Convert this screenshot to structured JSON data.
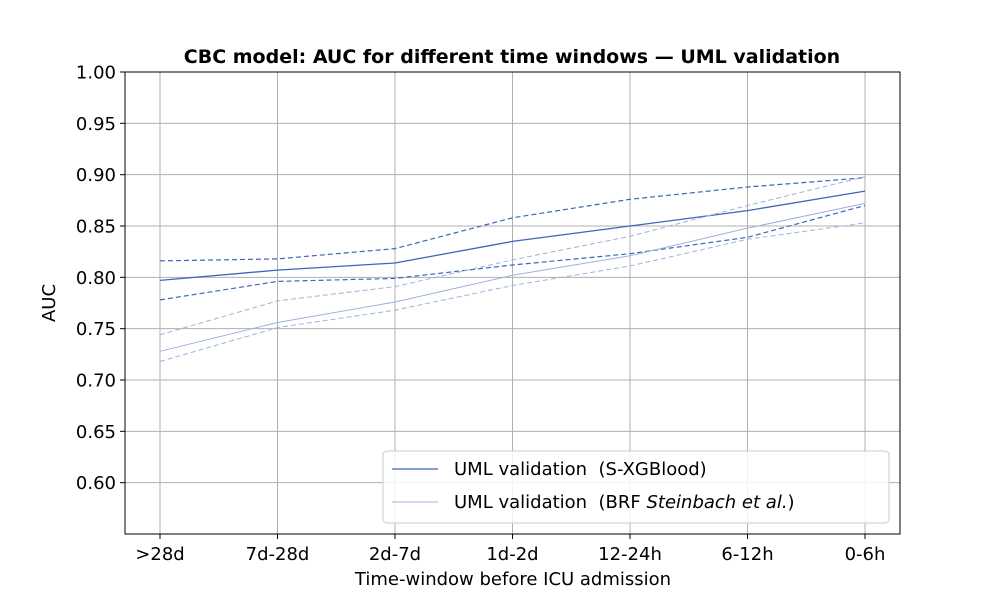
{
  "chart_data": {
    "type": "line",
    "title": "CBC model: AUC for different time windows — UML validation",
    "xlabel": "Time-window before ICU admission",
    "ylabel": "AUC",
    "categories": [
      ">28d",
      "7d-28d",
      "2d-7d",
      "1d-2d",
      "12-24h",
      "6-12h",
      "0-6h"
    ],
    "ylim": [
      0.55,
      1.0
    ],
    "yticks": [
      "0.60",
      "0.65",
      "0.70",
      "0.75",
      "0.80",
      "0.85",
      "0.90",
      "0.95",
      "1.00"
    ],
    "grid": true,
    "legend_position": "lower-right",
    "series": [
      {
        "name": "UML validation  (S-XGBlood)",
        "color": "#3f66b8",
        "values": [
          0.797,
          0.807,
          0.814,
          0.835,
          0.85,
          0.865,
          0.884
        ],
        "upper": [
          0.816,
          0.818,
          0.828,
          0.858,
          0.876,
          0.888,
          0.897
        ],
        "lower": [
          0.778,
          0.796,
          0.799,
          0.812,
          0.823,
          0.839,
          0.87
        ]
      },
      {
        "name": "UML validation  (BRF Steinbach et al.)",
        "name_prefix": "UML validation  (BRF ",
        "name_italic": "Steinbach et al.",
        "name_suffix": ")",
        "color": "#9db2dc",
        "values": [
          0.728,
          0.756,
          0.776,
          0.802,
          0.821,
          0.848,
          0.872
        ],
        "upper": [
          0.744,
          0.777,
          0.791,
          0.817,
          0.84,
          0.87,
          0.898
        ],
        "lower": [
          0.718,
          0.751,
          0.768,
          0.792,
          0.811,
          0.837,
          0.853
        ]
      }
    ]
  }
}
